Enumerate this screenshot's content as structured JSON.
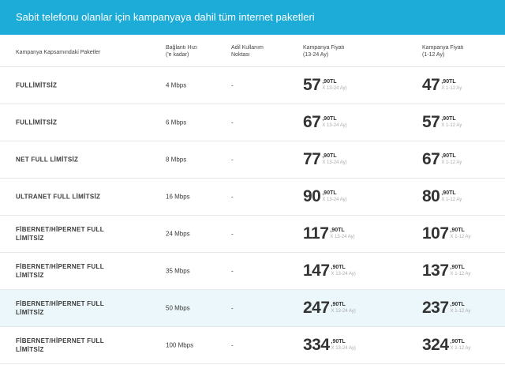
{
  "header": {
    "title": "Sabit telefonu olanlar için kampanyaya dahil tüm internet paketleri"
  },
  "columns": {
    "package": "Kampanya Kapsamındaki Paketler",
    "speed_line1": "Bağlantı Hızı",
    "speed_line2": "('e kadar)",
    "port_line1": "Adil Kullanım",
    "port_line2": "Noktası",
    "price1_line1": "Kampanya Fiyatı",
    "price1_line2": "(13-24 Ay)",
    "price2_line1": "Kampanya Fiyatı",
    "price2_line2": "(1-12 Ay)"
  },
  "rows": [
    {
      "name": "FULLİMİTSİZ",
      "speed": "4 Mbps",
      "port": "-",
      "price1_int": "57",
      "price1_dec": ",90TL",
      "price1_per": "X 13-24 Ay)",
      "price2_int": "47",
      "price2_dec": ",90TL",
      "price2_per": "X 1-12 Ay"
    },
    {
      "name": "FULLİMİTSİZ",
      "speed": "6 Mbps",
      "port": "-",
      "price1_int": "67",
      "price1_dec": ",90TL",
      "price1_per": "X 13-24 Ay)",
      "price2_int": "57",
      "price2_dec": ",90TL",
      "price2_per": "X 1-12 Ay"
    },
    {
      "name": "NET FULL LİMİTSİZ",
      "speed": "8 Mbps",
      "port": "-",
      "price1_int": "77",
      "price1_dec": ",90TL",
      "price1_per": "X 13-24 Ay)",
      "price2_int": "67",
      "price2_dec": ",90TL",
      "price2_per": "X 1-12 Ay"
    },
    {
      "name": "ULTRANET FULL LİMİTSİZ",
      "speed": "16 Mbps",
      "port": "-",
      "price1_int": "90",
      "price1_dec": ",90TL",
      "price1_per": "X 13-24 Ay)",
      "price2_int": "80",
      "price2_dec": ",90TL",
      "price2_per": "X 1-12 Ay"
    },
    {
      "name": "FİBERNET/HİPERNET FULL LİMİTSİZ",
      "speed": "24 Mbps",
      "port": "-",
      "price1_int": "117",
      "price1_dec": ",90TL",
      "price1_per": "X 13-24 Ay)",
      "price2_int": "107",
      "price2_dec": ",90TL",
      "price2_per": "X 1-12 Ay"
    },
    {
      "name": "FİBERNET/HİPERNET FULL LİMİTSİZ",
      "speed": "35 Mbps",
      "port": "-",
      "price1_int": "147",
      "price1_dec": ",90TL",
      "price1_per": "X 13-24 Ay)",
      "price2_int": "137",
      "price2_dec": ",90TL",
      "price2_per": "X 1-12 Ay"
    },
    {
      "name": "FİBERNET/HİPERNET FULL LİMİTSİZ",
      "speed": "50 Mbps",
      "port": "-",
      "price1_int": "247",
      "price1_dec": ",90TL",
      "price1_per": "X 13-24 Ay)",
      "price2_int": "237",
      "price2_dec": ",90TL",
      "price2_per": "X 1-12 Ay"
    },
    {
      "name": "FİBERNET/HİPERNET FULL LİMİTSİZ",
      "speed": "100 Mbps",
      "port": "-",
      "price1_int": "334",
      "price1_dec": ",90TL",
      "price1_per": "X 13-24 Ay)",
      "price2_int": "324",
      "price2_dec": ",90TL",
      "price2_per": "X 1-12 Ay"
    }
  ],
  "highlighted_row": 6,
  "colors": {
    "header_bg": "#1dabd8",
    "highlight_bg": "#ecf7fb"
  }
}
